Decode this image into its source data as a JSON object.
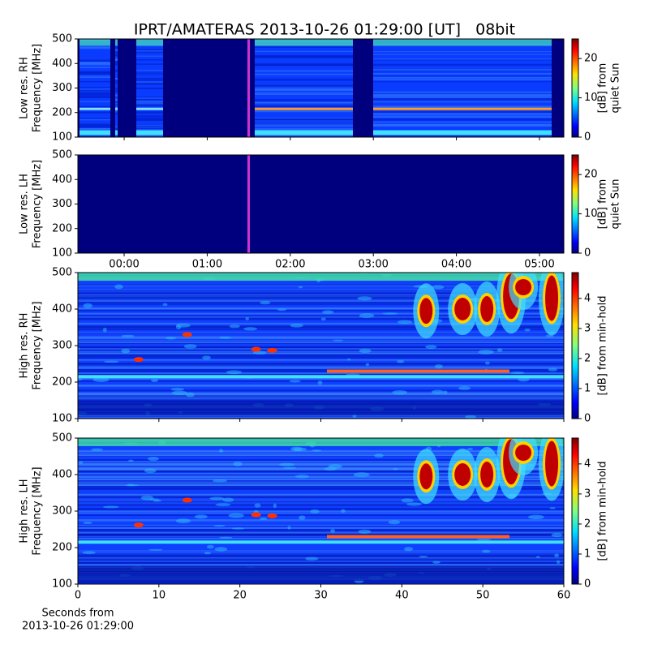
{
  "chart_data": [
    {
      "type": "heatmap",
      "title": "IPRT/AMATERAS 2013-10-26 01:29:00 [UT]   08bit",
      "ylabel": [
        "Low res. RH",
        "Frequency [MHz]"
      ],
      "ylim": [
        100,
        500
      ],
      "yticks": [
        100,
        200,
        300,
        400,
        500
      ],
      "colormap": "jet",
      "colorbar": {
        "label": [
          "[dB] from",
          "quiet Sun"
        ],
        "lim": [
          0,
          25
        ],
        "ticks": [
          0,
          10,
          20
        ]
      }
    },
    {
      "type": "heatmap",
      "ylabel": [
        "Low res. LH",
        "Frequency [MHz]"
      ],
      "ylim": [
        100,
        500
      ],
      "yticks": [
        100,
        200,
        300,
        400,
        500
      ],
      "xlim": [
        -0.557,
        5.293
      ],
      "xticks": [
        {
          "value": 0,
          "label": "00:00"
        },
        {
          "value": 1,
          "label": "01:00"
        },
        {
          "value": 2,
          "label": "02:00"
        },
        {
          "value": 3,
          "label": "03:00"
        },
        {
          "value": 4,
          "label": "04:00"
        },
        {
          "value": 5,
          "label": "05:00"
        }
      ],
      "colormap": "jet",
      "colorbar": {
        "label": [
          "[dB] from",
          "quiet Sun"
        ],
        "lim": [
          0,
          25
        ],
        "ticks": [
          0,
          10,
          20
        ]
      }
    },
    {
      "type": "heatmap",
      "ylabel": [
        "High res. RH",
        "Frequency [MHz]"
      ],
      "ylim": [
        100,
        500
      ],
      "yticks": [
        100,
        200,
        300,
        400,
        500
      ],
      "colormap": "jet",
      "colorbar": {
        "label": [
          "[dB] from min-hold"
        ],
        "lim": [
          0,
          4.86
        ],
        "ticks": [
          0,
          1,
          2,
          3,
          4
        ]
      }
    },
    {
      "type": "heatmap",
      "ylabel": [
        "High res. LH",
        "Frequency [MHz]"
      ],
      "ylim": [
        100,
        500
      ],
      "yticks": [
        100,
        200,
        300,
        400,
        500
      ],
      "xlim": [
        0,
        60
      ],
      "xticks": [
        0,
        10,
        20,
        30,
        40,
        50,
        60
      ],
      "xlabel": [
        "Seconds from",
        "2013-10-26 01:29:00"
      ],
      "colormap": "jet",
      "colorbar": {
        "label": [
          "[dB] from min-hold"
        ],
        "lim": [
          0,
          4.86
        ],
        "ticks": [
          0,
          1,
          2,
          3,
          4
        ]
      }
    }
  ]
}
